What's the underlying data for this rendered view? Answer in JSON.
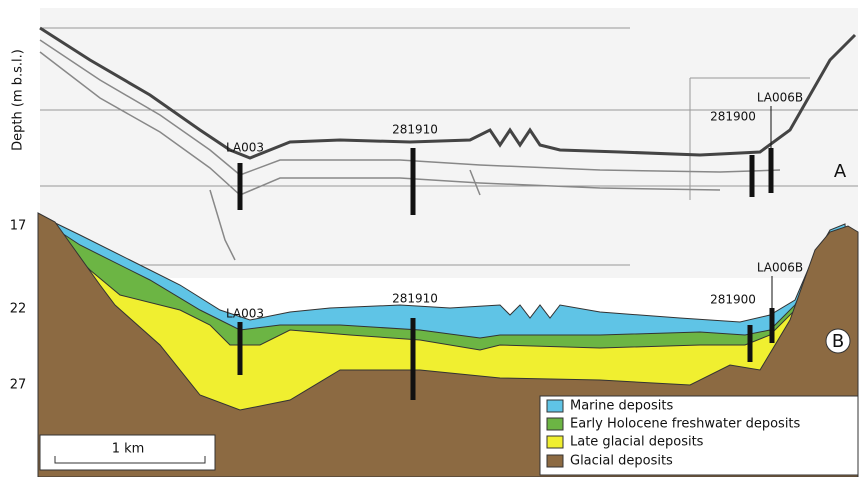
{
  "axis": {
    "label": "Depth (m b.s.l.)",
    "ticks": [
      "17",
      "22",
      "27"
    ]
  },
  "panel_a": {
    "label": "A",
    "cores": [
      "LA003",
      "281910",
      "281900",
      "LA006B"
    ]
  },
  "panel_b": {
    "label": "B",
    "cores": [
      "LA003",
      "281910",
      "281900",
      "LA006B"
    ]
  },
  "legend": [
    "Marine deposits",
    "Early Holocene freshwater deposits",
    "Late glacial deposits",
    "Glacial deposits"
  ],
  "scale_bar": "1 km"
}
